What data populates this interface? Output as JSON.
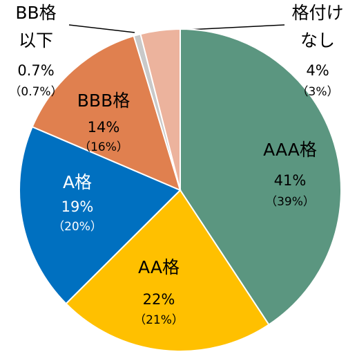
{
  "chart_data": {
    "type": "pie",
    "categories": [
      "AAA格",
      "AA格",
      "A格",
      "BBB格",
      [
        "BB格",
        "以下"
      ],
      [
        "格付け",
        "なし"
      ]
    ],
    "values": [
      41,
      22,
      19,
      14,
      0.7,
      4
    ],
    "value_labels": [
      "41%",
      "22%",
      "19%",
      "14%",
      "0.7%",
      "4%"
    ],
    "secondary_labels": [
      "（39%）",
      "（21%）",
      "（20%）",
      "（16%）",
      "（0.7%）",
      "（3%）"
    ],
    "colors": [
      "#5b9680",
      "#ffc000",
      "#0070c0",
      "#e0804f",
      "#c9c9c9",
      "#ecb39d"
    ]
  }
}
